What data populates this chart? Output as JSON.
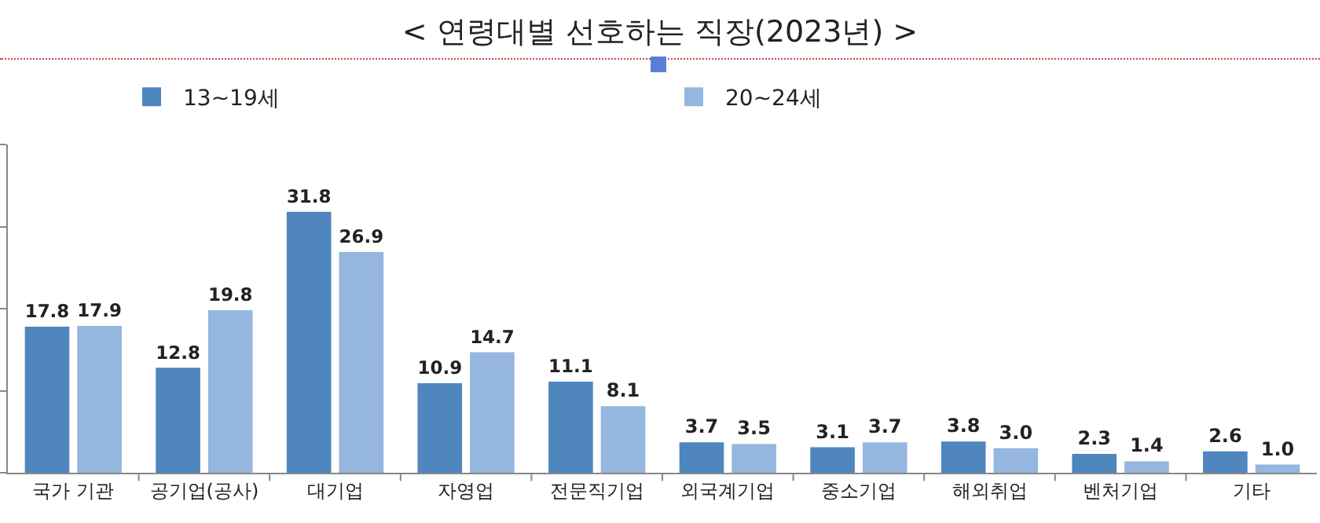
{
  "chart_data": {
    "type": "bar",
    "title": "< 연령대별 선호하는 직장(2023년) >",
    "categories": [
      "국가 기관",
      "공기업(공사)",
      "대기업",
      "자영업",
      "전문직기업",
      "외국계기업",
      "중소기업",
      "해외취업",
      "벤처기업",
      "기타"
    ],
    "series": [
      {
        "name": "13~19세",
        "color": "#4f86bd",
        "values": [
          17.8,
          12.8,
          31.8,
          10.9,
          11.1,
          3.7,
          3.1,
          3.8,
          2.3,
          2.6
        ],
        "value_labels": [
          "17.8",
          "12.8",
          "31.8",
          "10.9",
          "11.1",
          "3.7",
          "3.1",
          "3.8",
          "2.3",
          "2.6"
        ]
      },
      {
        "name": "20~24세",
        "color": "#95b6df",
        "values": [
          17.9,
          19.8,
          26.9,
          14.7,
          8.1,
          3.5,
          3.7,
          3.0,
          1.4,
          1.0
        ],
        "value_labels": [
          "17.9",
          "19.8",
          "26.9",
          "14.7",
          "8.1",
          "3.5",
          "3.7",
          "3.0",
          "1.4",
          "1.0"
        ]
      }
    ],
    "ylim": [
      0,
      40
    ],
    "yticks": [
      {
        "value": 0,
        "label": null
      },
      {
        "value": 10,
        "label": null
      },
      {
        "value": 20,
        "label": null
      },
      {
        "value": 30,
        "label": null
      },
      {
        "value": 40,
        "label": null
      }
    ],
    "tick_labels": "x",
    "legend": "top",
    "grid": false
  }
}
